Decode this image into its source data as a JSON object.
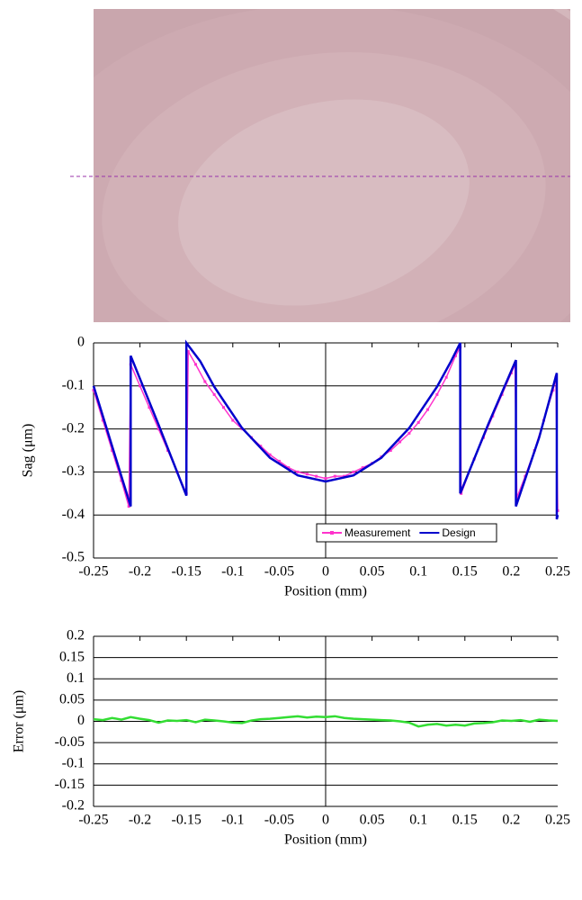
{
  "chart_data": [
    {
      "type": "line",
      "xlabel": "Position (mm)",
      "ylabel": "Sag (μm)",
      "xlim": [
        -0.25,
        0.25
      ],
      "ylim": [
        -0.5,
        0
      ],
      "xticks": [
        -0.25,
        -0.2,
        -0.15,
        -0.1,
        -0.05,
        0,
        0.05,
        0.1,
        0.15,
        0.2,
        0.25
      ],
      "yticks": [
        0,
        -0.1,
        -0.2,
        -0.3,
        -0.4,
        -0.5
      ],
      "grid": true,
      "legend": "lower right",
      "series": [
        {
          "name": "Measurement",
          "color": "#ff33cc",
          "marker": "square",
          "x": [
            -0.25,
            -0.24,
            -0.23,
            -0.22,
            -0.212,
            -0.21,
            -0.2,
            -0.19,
            -0.18,
            -0.17,
            -0.16,
            -0.15,
            -0.148,
            -0.14,
            -0.13,
            -0.12,
            -0.11,
            -0.1,
            -0.09,
            -0.08,
            -0.07,
            -0.06,
            -0.05,
            -0.04,
            -0.03,
            -0.02,
            -0.01,
            0,
            0.01,
            0.02,
            0.03,
            0.04,
            0.05,
            0.06,
            0.07,
            0.08,
            0.09,
            0.1,
            0.11,
            0.12,
            0.13,
            0.14,
            0.145,
            0.146,
            0.16,
            0.17,
            0.18,
            0.19,
            0.2,
            0.204,
            0.206,
            0.215,
            0.225,
            0.235,
            0.245,
            0.248,
            0.25
          ],
          "values": [
            -0.11,
            -0.18,
            -0.25,
            -0.32,
            -0.38,
            -0.05,
            -0.1,
            -0.15,
            -0.2,
            -0.25,
            -0.3,
            -0.35,
            -0.02,
            -0.05,
            -0.09,
            -0.12,
            -0.15,
            -0.18,
            -0.2,
            -0.22,
            -0.24,
            -0.26,
            -0.275,
            -0.29,
            -0.3,
            -0.305,
            -0.31,
            -0.315,
            -0.31,
            -0.31,
            -0.3,
            -0.29,
            -0.28,
            -0.265,
            -0.25,
            -0.23,
            -0.21,
            -0.185,
            -0.155,
            -0.12,
            -0.08,
            -0.03,
            -0.01,
            -0.35,
            -0.27,
            -0.22,
            -0.17,
            -0.12,
            -0.07,
            -0.05,
            -0.36,
            -0.31,
            -0.25,
            -0.18,
            -0.11,
            -0.08,
            -0.39
          ]
        },
        {
          "name": "Design",
          "color": "#0000cc",
          "x": [
            -0.25,
            -0.23,
            -0.21,
            -0.21,
            -0.18,
            -0.15,
            -0.15,
            -0.135,
            -0.12,
            -0.09,
            -0.06,
            -0.03,
            0,
            0.03,
            0.06,
            0.09,
            0.12,
            0.135,
            0.145,
            0.145,
            0.175,
            0.205,
            0.205,
            0.23,
            0.249,
            0.249,
            0.25
          ],
          "values": [
            -0.1,
            -0.24,
            -0.38,
            -0.03,
            -0.19,
            -0.355,
            0,
            -0.043,
            -0.102,
            -0.198,
            -0.267,
            -0.308,
            -0.322,
            -0.308,
            -0.267,
            -0.198,
            -0.102,
            -0.043,
            0,
            -0.35,
            -0.19,
            -0.04,
            -0.38,
            -0.22,
            -0.07,
            -0.41,
            -0.4
          ]
        }
      ]
    },
    {
      "type": "line",
      "xlabel": "Position (mm)",
      "ylabel": "Error (μm)",
      "xlim": [
        -0.25,
        0.25
      ],
      "ylim": [
        -0.2,
        0.2
      ],
      "xticks": [
        -0.25,
        -0.2,
        -0.15,
        -0.1,
        -0.05,
        0,
        0.05,
        0.1,
        0.15,
        0.2,
        0.25
      ],
      "yticks": [
        0.2,
        0.15,
        0.1,
        0.05,
        0,
        -0.05,
        -0.1,
        -0.15,
        -0.2
      ],
      "grid": true,
      "series": [
        {
          "color": "#33dd33",
          "x": [
            -0.25,
            -0.24,
            -0.23,
            -0.22,
            -0.21,
            -0.2,
            -0.19,
            -0.18,
            -0.17,
            -0.16,
            -0.15,
            -0.14,
            -0.13,
            -0.12,
            -0.11,
            -0.1,
            -0.09,
            -0.08,
            -0.07,
            -0.06,
            -0.05,
            -0.04,
            -0.03,
            -0.02,
            -0.01,
            0,
            0.01,
            0.02,
            0.03,
            0.04,
            0.05,
            0.06,
            0.07,
            0.08,
            0.09,
            0.1,
            0.11,
            0.12,
            0.13,
            0.14,
            0.15,
            0.16,
            0.17,
            0.18,
            0.19,
            0.2,
            0.21,
            0.22,
            0.23,
            0.24,
            0.25
          ],
          "values": [
            0.005,
            0.003,
            0.008,
            0.004,
            0.01,
            0.006,
            0.003,
            -0.003,
            0.002,
            0.001,
            0.003,
            -0.002,
            0.004,
            0.002,
            0,
            -0.003,
            -0.004,
            0.002,
            0.005,
            0.006,
            0.008,
            0.01,
            0.012,
            0.009,
            0.011,
            0.01,
            0.012,
            0.008,
            0.006,
            0.005,
            0.004,
            0.003,
            0.002,
            0,
            -0.003,
            -0.012,
            -0.008,
            -0.006,
            -0.01,
            -0.008,
            -0.01,
            -0.005,
            -0.004,
            -0.002,
            0.002,
            0.001,
            0.003,
            -0.001,
            0.004,
            0.002,
            0.001
          ]
        }
      ]
    }
  ]
}
